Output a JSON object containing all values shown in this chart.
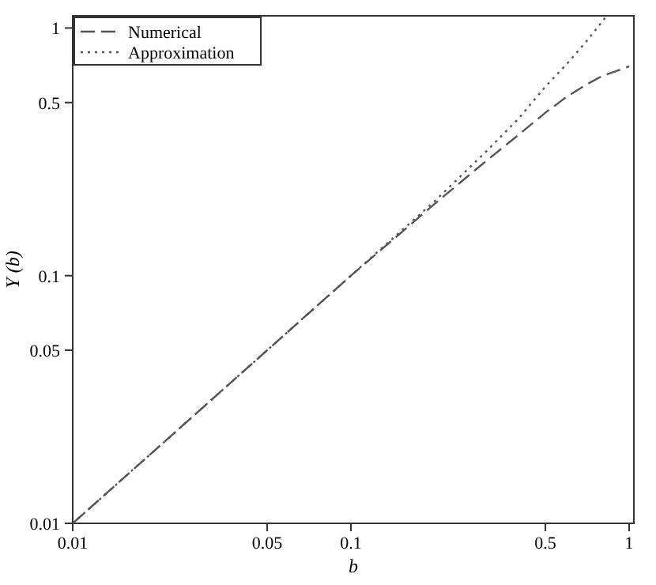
{
  "chart_data": {
    "type": "line",
    "xlabel": "b",
    "ylabel": "Y (b)",
    "log": "xy",
    "xlim": [
      0.01,
      1.04
    ],
    "ylim": [
      0.01,
      1.12
    ],
    "xticks": [
      0.01,
      0.05,
      0.1,
      0.5,
      1
    ],
    "yticks": [
      0.01,
      0.05,
      0.1,
      0.5,
      1
    ],
    "grid": false,
    "legend": "top left",
    "series": [
      {
        "name": "Numerical",
        "color": "#555555",
        "line_style": "dashed",
        "x": [
          0.01,
          0.05,
          0.1,
          0.2,
          0.3,
          0.4,
          0.5,
          0.6,
          0.7,
          0.8,
          0.9,
          1.0
        ],
        "values": [
          0.01,
          0.05,
          0.1,
          0.195,
          0.285,
          0.37,
          0.455,
          0.53,
          0.59,
          0.64,
          0.67,
          0.7
        ]
      },
      {
        "name": "Approximation",
        "color": "#555555",
        "line_style": "dotted",
        "x": [
          0.01,
          0.05,
          0.1,
          0.2,
          0.3,
          0.4,
          0.5,
          0.6,
          0.7,
          0.8,
          0.83
        ],
        "values": [
          0.01,
          0.05,
          0.1,
          0.2,
          0.31,
          0.43,
          0.58,
          0.72,
          0.88,
          1.06,
          1.12
        ]
      }
    ]
  }
}
